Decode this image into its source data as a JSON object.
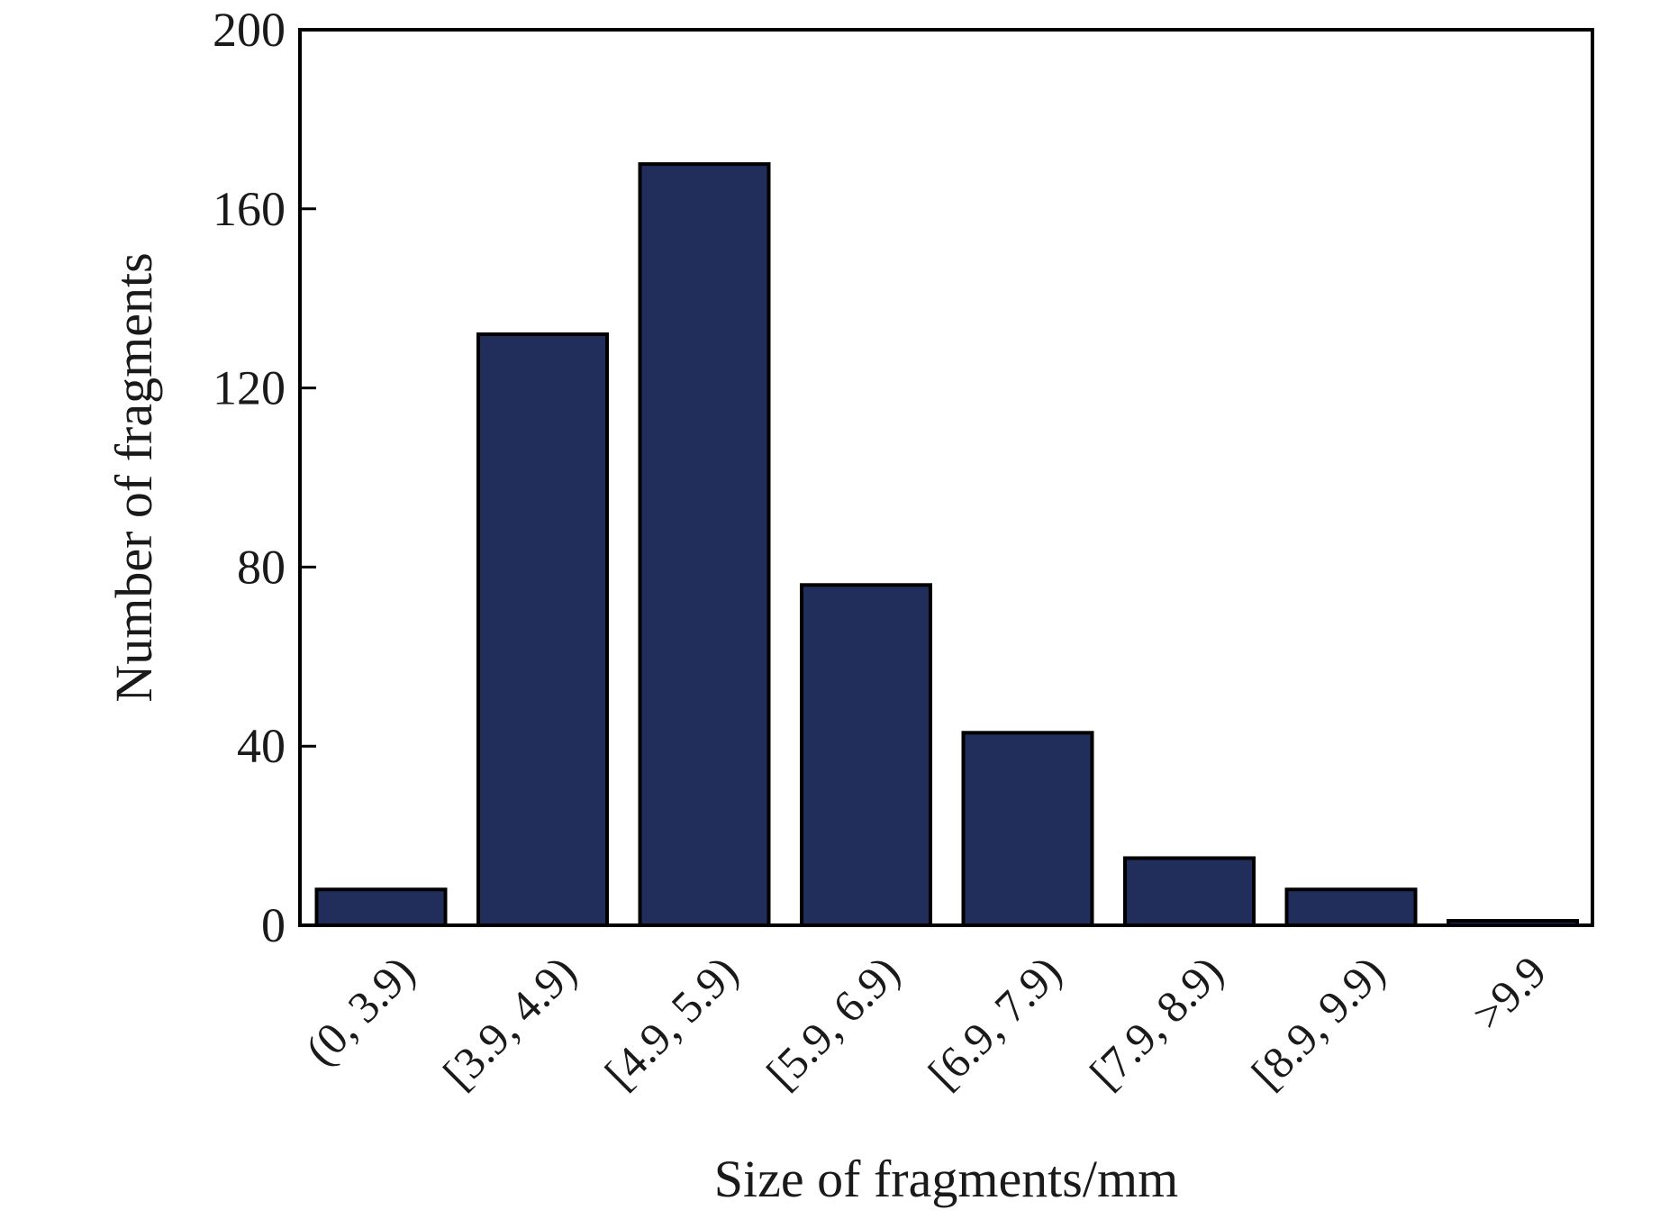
{
  "chart_data": {
    "type": "bar",
    "categories": [
      "(0, 3.9)",
      "[3.9, 4.9)",
      "[4.9, 5.9)",
      "[5.9, 6.9)",
      "[6.9, 7.9)",
      "[7.9, 8.9)",
      "[8.9, 9.9)",
      ">9.9"
    ],
    "values": [
      8,
      132,
      170,
      76,
      43,
      15,
      8,
      1
    ],
    "xlabel": "Size of fragments/mm",
    "ylabel": "Number of fragments",
    "ylim": [
      0,
      200
    ],
    "yticks": [
      0,
      40,
      80,
      120,
      160,
      200
    ],
    "grid": false,
    "bar_color": "#212d5a",
    "edge_color": "#000000"
  }
}
